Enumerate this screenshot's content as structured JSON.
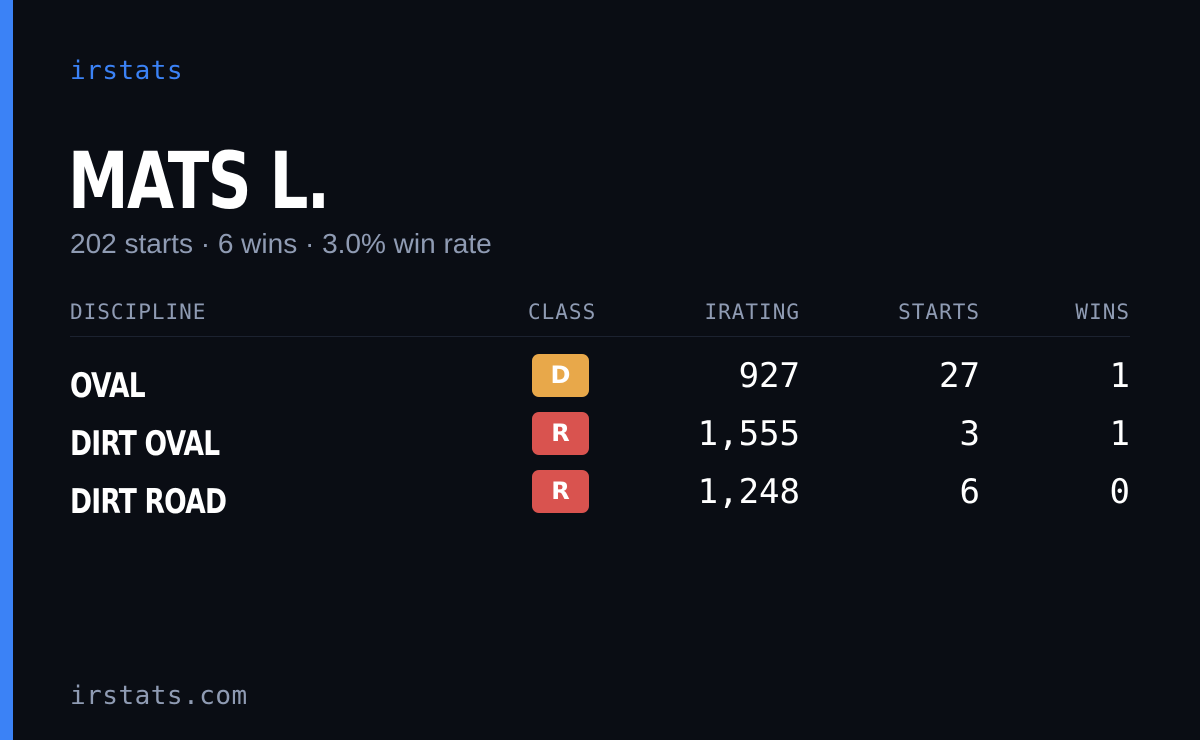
{
  "brand": "irstats",
  "player": {
    "name": "MATS L.",
    "summary": "202 starts · 6 wins · 3.0% win rate"
  },
  "table": {
    "headers": {
      "discipline": "DISCIPLINE",
      "class": "CLASS",
      "irating": "IRATING",
      "starts": "STARTS",
      "wins": "WINS"
    },
    "rows": [
      {
        "discipline": "OVAL",
        "class": "D",
        "class_color": "#e8a84a",
        "irating": "927",
        "starts": "27",
        "wins": "1"
      },
      {
        "discipline": "DIRT OVAL",
        "class": "R",
        "class_color": "#d9534f",
        "irating": "1,555",
        "starts": "3",
        "wins": "1"
      },
      {
        "discipline": "DIRT ROAD",
        "class": "R",
        "class_color": "#d9534f",
        "irating": "1,248",
        "starts": "6",
        "wins": "0"
      }
    ]
  },
  "footer": "irstats.com",
  "colors": {
    "background": "#0a0d14",
    "accent": "#3b82f6",
    "muted_text": "#8f9bb3",
    "class_d": "#e8a84a",
    "class_r": "#d9534f"
  }
}
